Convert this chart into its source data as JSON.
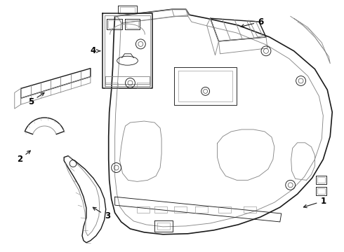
{
  "bg_color": "#ffffff",
  "lc": "#1a1a1a",
  "lc_gray": "#888888",
  "lc_light": "#bbbbbb",
  "lw_main": 1.0,
  "lw_med": 0.65,
  "lw_thin": 0.4
}
